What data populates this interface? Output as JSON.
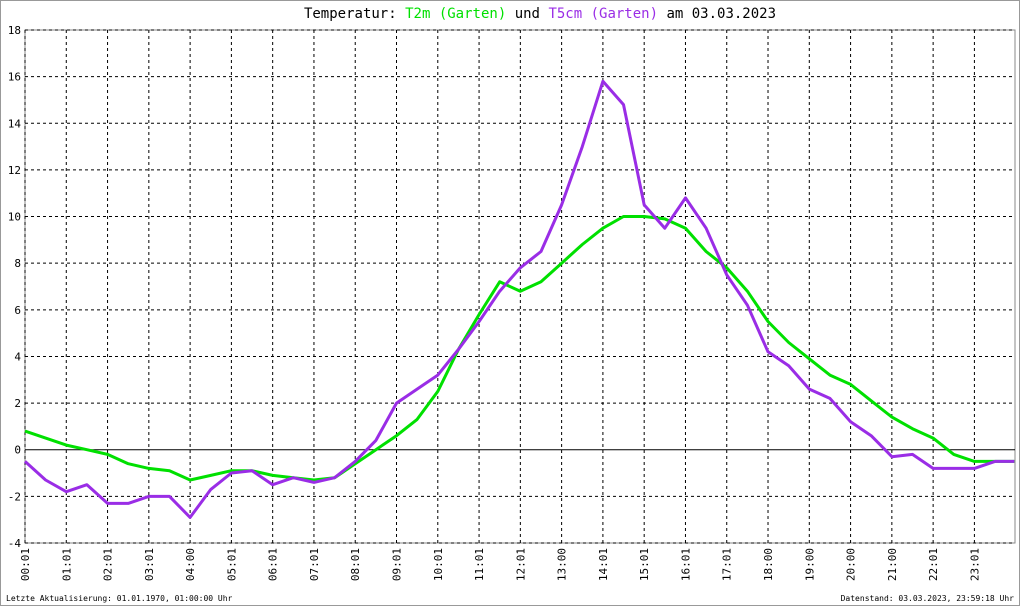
{
  "chart_data": {
    "type": "line",
    "title_prefix": "Temperatur:",
    "title_join": "und",
    "title_suffix": "am 03.03.2023",
    "footer_left": "Letzte Aktualisierung: 01.01.1970, 01:00:00 Uhr",
    "footer_right": "Datenstand: 03.03.2023, 23:59:18 Uhr",
    "grid": true,
    "xlim": [
      1,
      1440
    ],
    "xticks": [
      {
        "value": 1,
        "label": "00:01"
      },
      {
        "value": 61,
        "label": "01:01"
      },
      {
        "value": 121,
        "label": "02:01"
      },
      {
        "value": 181,
        "label": "03:01"
      },
      {
        "value": 241,
        "label": "04:00"
      },
      {
        "value": 301,
        "label": "05:01"
      },
      {
        "value": 361,
        "label": "06:01"
      },
      {
        "value": 421,
        "label": "07:01"
      },
      {
        "value": 481,
        "label": "08:01"
      },
      {
        "value": 541,
        "label": "09:01"
      },
      {
        "value": 601,
        "label": "10:01"
      },
      {
        "value": 661,
        "label": "11:01"
      },
      {
        "value": 721,
        "label": "12:01"
      },
      {
        "value": 781,
        "label": "13:00"
      },
      {
        "value": 841,
        "label": "14:01"
      },
      {
        "value": 901,
        "label": "15:01"
      },
      {
        "value": 961,
        "label": "16:01"
      },
      {
        "value": 1021,
        "label": "17:01"
      },
      {
        "value": 1081,
        "label": "18:00"
      },
      {
        "value": 1141,
        "label": "19:00"
      },
      {
        "value": 1201,
        "label": "20:00"
      },
      {
        "value": 1261,
        "label": "21:00"
      },
      {
        "value": 1321,
        "label": "22:01"
      },
      {
        "value": 1381,
        "label": "23:01"
      }
    ],
    "ylim": [
      -4,
      18
    ],
    "yticks": [
      -4,
      -2,
      0,
      2,
      4,
      6,
      8,
      10,
      12,
      14,
      16,
      18
    ],
    "x": [
      1,
      31,
      61,
      91,
      121,
      151,
      181,
      211,
      241,
      271,
      301,
      331,
      361,
      391,
      421,
      451,
      481,
      511,
      541,
      571,
      601,
      631,
      661,
      691,
      721,
      751,
      781,
      811,
      841,
      871,
      901,
      931,
      961,
      991,
      1021,
      1051,
      1081,
      1111,
      1141,
      1171,
      1201,
      1231,
      1261,
      1291,
      1321,
      1351,
      1381,
      1411,
      1439
    ],
    "series": [
      {
        "name": "T2m (Garten)",
        "color": "#00e000",
        "values": [
          0.8,
          0.5,
          0.2,
          0.0,
          -0.2,
          -0.6,
          -0.8,
          -0.9,
          -1.3,
          -1.1,
          -0.9,
          -0.9,
          -1.1,
          -1.2,
          -1.3,
          -1.2,
          -0.6,
          0.0,
          0.6,
          1.3,
          2.5,
          4.3,
          5.8,
          7.2,
          6.8,
          7.2,
          8.0,
          8.8,
          9.5,
          10.0,
          10.0,
          9.9,
          9.5,
          8.5,
          7.8,
          6.8,
          5.5,
          4.6,
          3.9,
          3.2,
          2.8,
          2.1,
          1.4,
          0.9,
          0.5,
          -0.2,
          -0.5,
          -0.5,
          -0.5
        ]
      },
      {
        "name": "T5cm (Garten)",
        "color": "#9a2de6",
        "values": [
          -0.5,
          -1.3,
          -1.8,
          -1.5,
          -2.3,
          -2.3,
          -2.0,
          -2.0,
          -2.9,
          -1.7,
          -1.0,
          -0.9,
          -1.5,
          -1.2,
          -1.4,
          -1.2,
          -0.5,
          0.4,
          2.0,
          2.6,
          3.2,
          4.3,
          5.5,
          6.8,
          7.8,
          8.5,
          10.5,
          13.0,
          15.8,
          14.8,
          10.5,
          9.5,
          10.8,
          9.5,
          7.5,
          6.2,
          4.2,
          3.6,
          2.6,
          2.2,
          1.2,
          0.6,
          -0.3,
          -0.2,
          -0.8,
          -0.8,
          -0.8,
          -0.5,
          -0.5
        ]
      }
    ]
  }
}
